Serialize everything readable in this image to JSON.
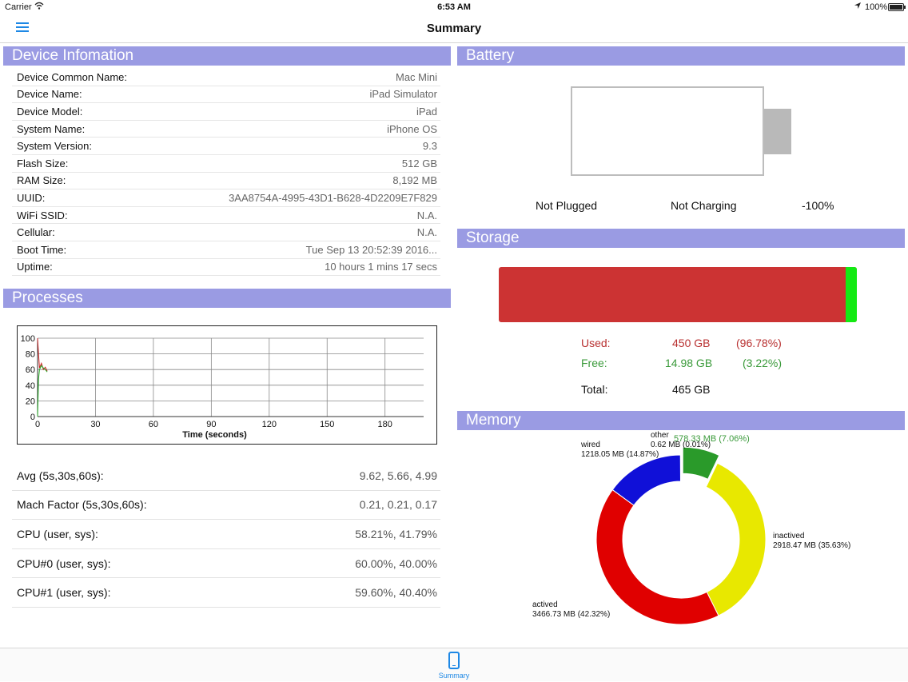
{
  "status_bar": {
    "carrier": "Carrier",
    "time": "6:53 AM",
    "battery_percent": "100%"
  },
  "nav": {
    "title": "Summary"
  },
  "device_info": {
    "header": "Device Infomation",
    "rows": [
      {
        "label": "Device Common Name:",
        "value": "Mac Mini"
      },
      {
        "label": "Device Name:",
        "value": "iPad Simulator"
      },
      {
        "label": "Device Model:",
        "value": "iPad"
      },
      {
        "label": "System Name:",
        "value": "iPhone OS"
      },
      {
        "label": "System Version:",
        "value": "9.3"
      },
      {
        "label": "Flash Size:",
        "value": "512 GB"
      },
      {
        "label": "RAM Size:",
        "value": "8,192 MB"
      },
      {
        "label": "UUID:",
        "value": "3AA8754A-4995-43D1-B628-4D2209E7F829"
      },
      {
        "label": "WiFi SSID:",
        "value": "N.A."
      },
      {
        "label": "Cellular:",
        "value": "N.A."
      },
      {
        "label": "Boot Time:",
        "value": "Tue Sep 13 20:52:39 2016..."
      },
      {
        "label": "Uptime:",
        "value": "10 hours 1 mins 17 secs"
      }
    ]
  },
  "processes": {
    "header": "Processes",
    "rows": [
      {
        "label": "Avg (5s,30s,60s):",
        "value": "9.62, 5.66, 4.99"
      },
      {
        "label": "Mach Factor (5s,30s,60s):",
        "value": "0.21, 0.21, 0.17"
      },
      {
        "label": "CPU (user, sys):",
        "value": "58.21%, 41.79%"
      },
      {
        "label": "CPU#0 (user, sys):",
        "value": "60.00%, 40.00%"
      },
      {
        "label": "CPU#1 (user, sys):",
        "value": "59.60%, 40.40%"
      }
    ]
  },
  "chart_data": {
    "type": "line",
    "xlabel": "Time (seconds)",
    "ylabel": "",
    "xlim": [
      0,
      200
    ],
    "ylim": [
      0,
      100
    ],
    "x_ticks": [
      0,
      30,
      60,
      90,
      120,
      150,
      180
    ],
    "y_ticks": [
      0,
      20,
      40,
      60,
      80,
      100
    ],
    "grid": true,
    "series": [
      {
        "color": "#cc2222",
        "x": [
          0,
          0.5,
          1,
          2,
          3,
          4,
          5
        ],
        "y": [
          100,
          80,
          62,
          68,
          60,
          63,
          58
        ]
      },
      {
        "color": "#22aa22",
        "x": [
          0,
          0.5,
          1,
          2,
          3,
          4,
          5
        ],
        "y": [
          0,
          48,
          60,
          65,
          62,
          60,
          57
        ]
      }
    ]
  },
  "battery": {
    "header": "Battery",
    "plug_status": "Not Plugged",
    "charge_status": "Not Charging",
    "level": "-100%",
    "fill_fraction": 0
  },
  "storage": {
    "header": "Storage",
    "used_fraction": 0.9678,
    "used": {
      "label": "Used:",
      "amount": "450 GB",
      "percent": "(96.78%)"
    },
    "free": {
      "label": "Free:",
      "amount": "14.98 GB",
      "percent": "(3.22%)"
    },
    "total": {
      "label": "Total:",
      "amount": "465 GB"
    },
    "colors": {
      "used": "#cc3333",
      "free": "#13ea13"
    }
  },
  "memory": {
    "header": "Memory",
    "segments": [
      {
        "name": "other",
        "value": "0.62 MB (0.01%)",
        "percent": 0.01,
        "color": "#2a8c2a"
      },
      {
        "name": "wired",
        "value": "1218.05 MB (14.87%)",
        "percent": 14.87,
        "color": "#1010d8"
      },
      {
        "name": "inactived",
        "value": "2918.47 MB (35.63%)",
        "percent": 35.63,
        "color": "#e8e800"
      },
      {
        "name": "actived",
        "value": "3466.73 MB (42.32%)",
        "percent": 42.32,
        "color": "#e00000"
      },
      {
        "name": "",
        "value": "578.33 MB (7.06%)",
        "percent": 7.06,
        "color": "#2a9a2a"
      }
    ]
  },
  "tab_bar": {
    "summary_label": "Summary"
  }
}
